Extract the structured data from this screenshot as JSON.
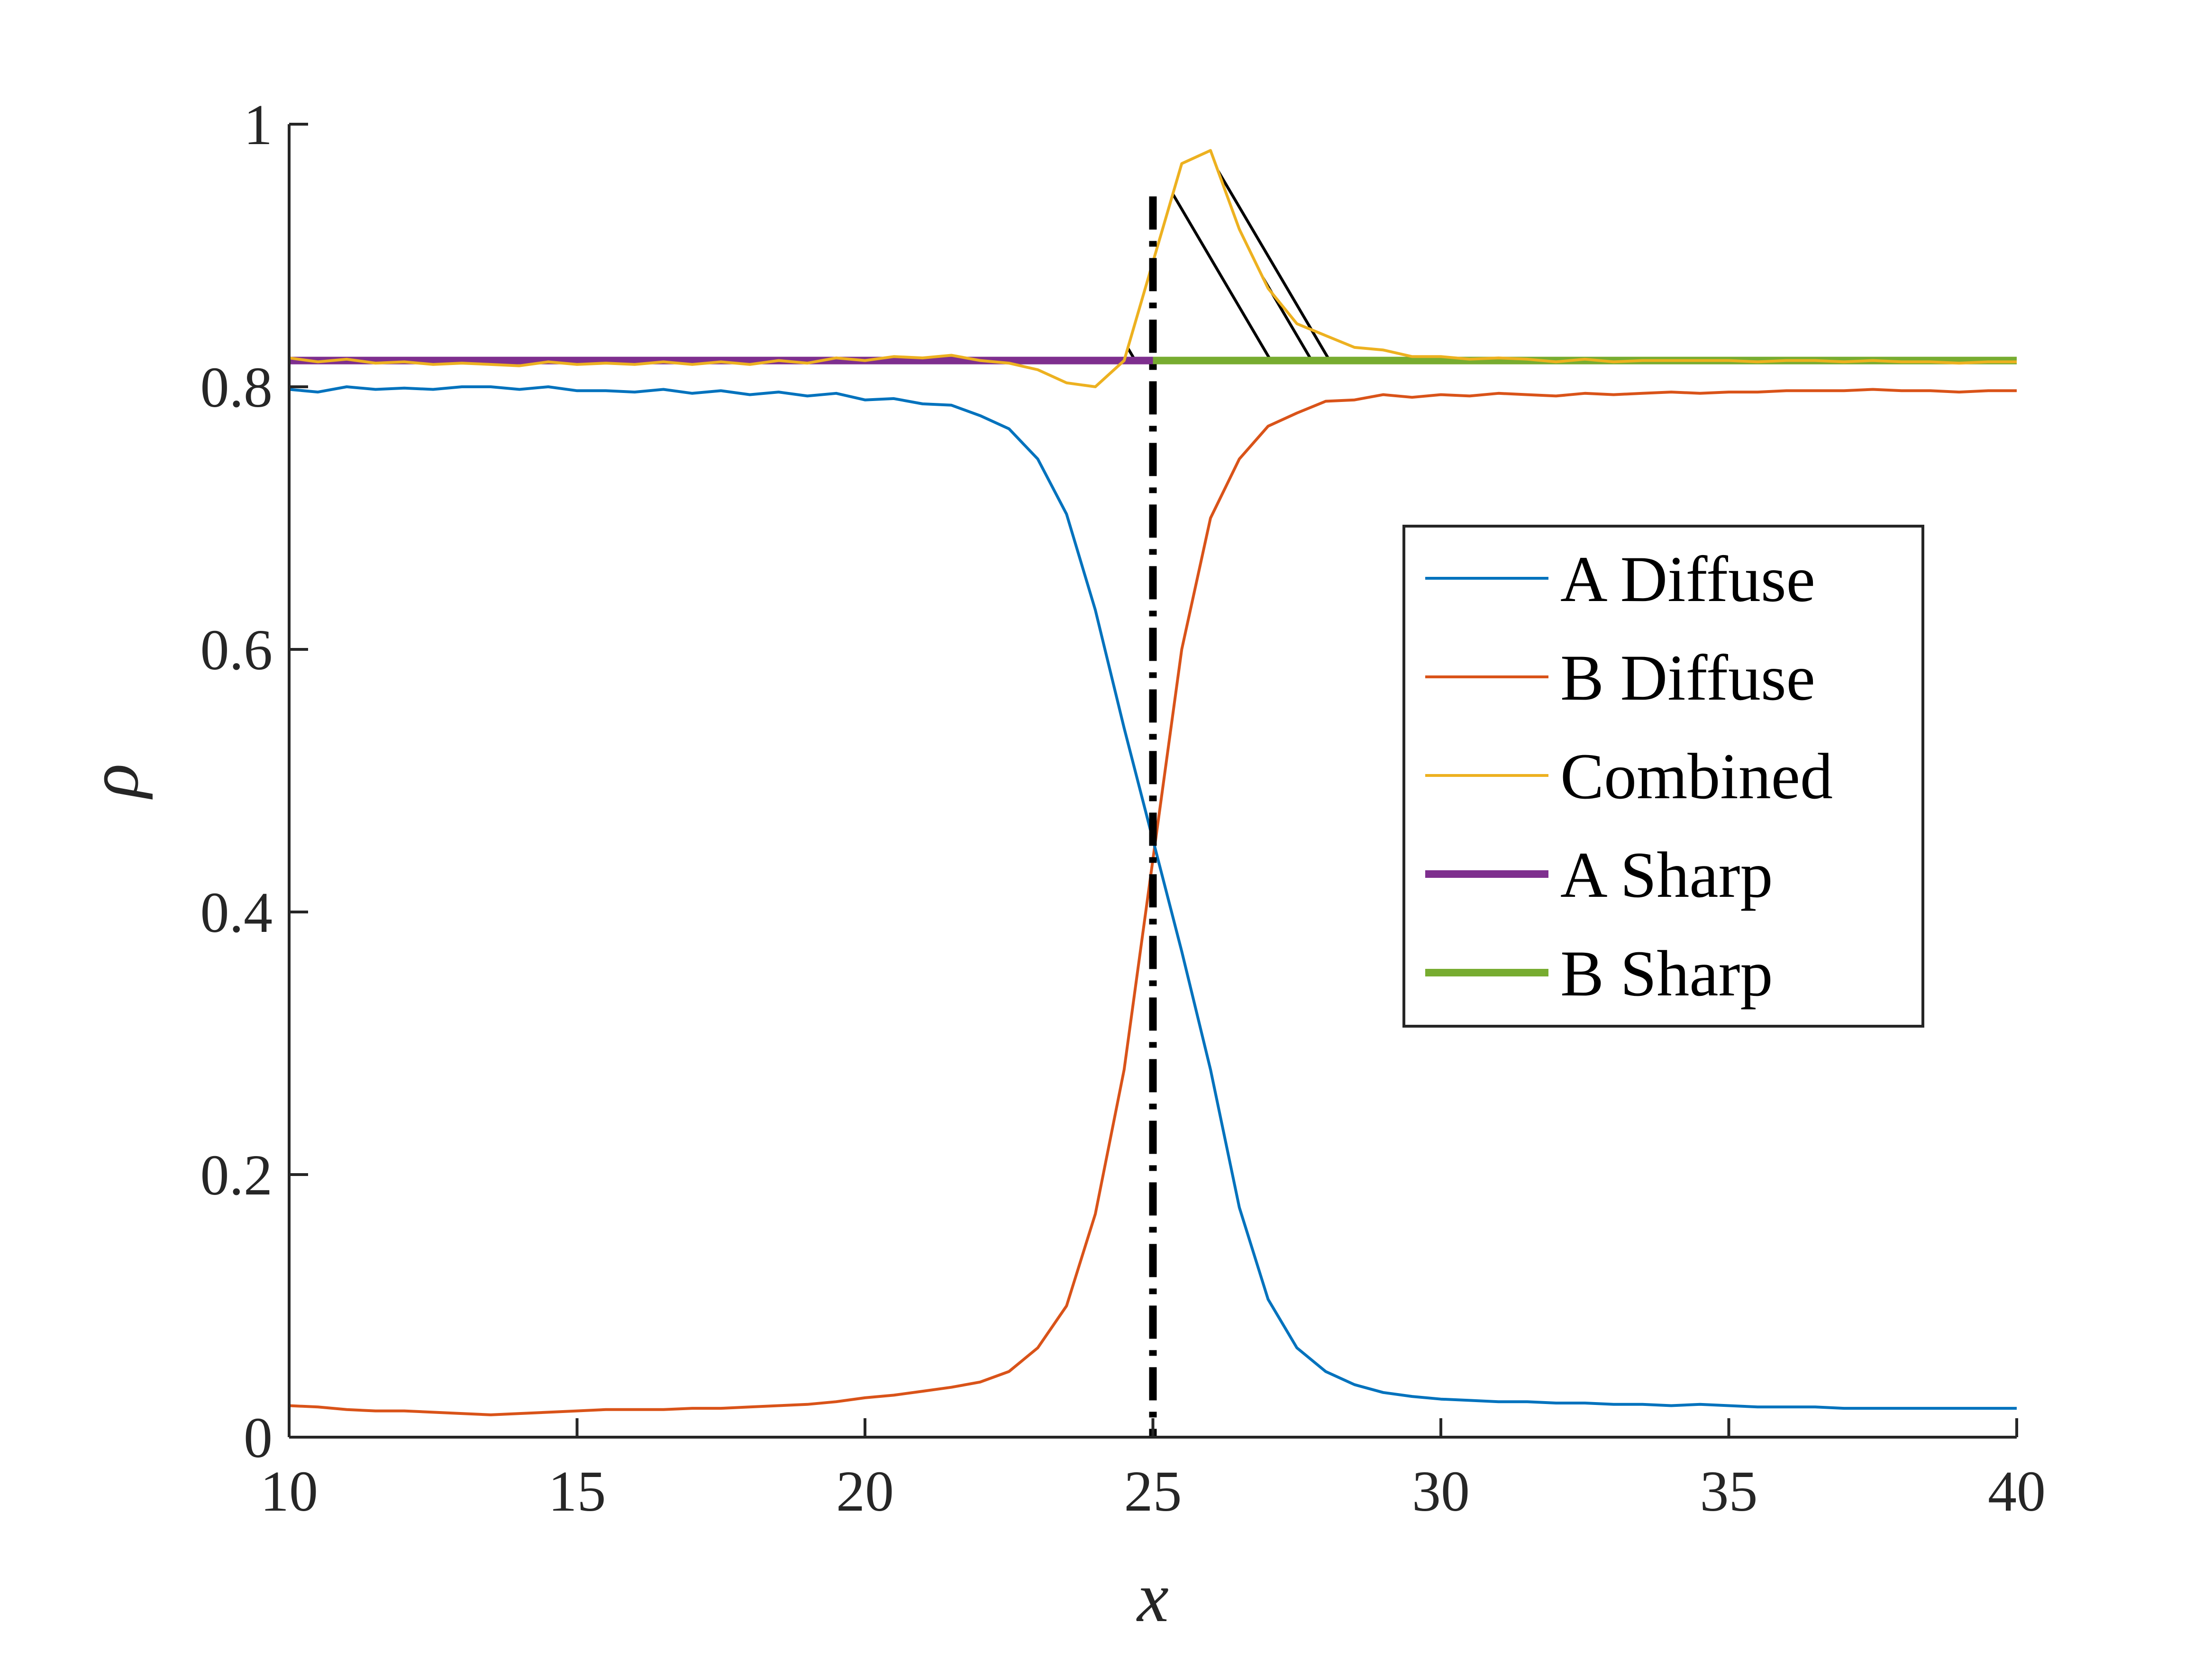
{
  "chart_data": {
    "type": "line",
    "xlabel": "x",
    "ylabel": "ρ",
    "xlim": [
      10,
      40
    ],
    "ylim": [
      0,
      1
    ],
    "xticks": [
      10,
      15,
      20,
      25,
      30,
      35,
      40
    ],
    "xtick_labels": [
      "10",
      "15",
      "20",
      "25",
      "30",
      "35",
      "40"
    ],
    "yticks": [
      0,
      0.2,
      0.4,
      0.6,
      0.8,
      1
    ],
    "ytick_labels": [
      "0",
      "0.2",
      "0.4",
      "0.6",
      "0.8",
      "1"
    ],
    "grid": false,
    "legend_position": "center-right",
    "interface_x": 25,
    "shaded_region": {
      "x": [
        23,
        27.4
      ],
      "baseline": 0.82,
      "hatched": true
    },
    "series": [
      {
        "name": "A Diffuse",
        "color": "#0072BD",
        "line_width": "thin",
        "x": [
          10,
          10.5,
          11,
          11.5,
          12,
          12.5,
          13,
          13.5,
          14,
          14.5,
          15,
          15.5,
          16,
          16.5,
          17,
          17.5,
          18,
          18.5,
          19,
          19.5,
          20,
          20.5,
          21,
          21.5,
          22,
          22.5,
          23,
          23.5,
          24,
          24.5,
          25,
          25.5,
          26,
          26.5,
          27,
          27.5,
          28,
          28.5,
          29,
          29.5,
          30,
          30.5,
          31,
          31.5,
          32,
          32.5,
          33,
          33.5,
          34,
          34.5,
          35,
          35.5,
          36,
          36.5,
          37,
          37.5,
          38,
          38.5,
          39,
          39.5,
          40
        ],
        "y": [
          0.798,
          0.796,
          0.8,
          0.798,
          0.799,
          0.798,
          0.8,
          0.8,
          0.798,
          0.8,
          0.797,
          0.797,
          0.796,
          0.798,
          0.795,
          0.797,
          0.794,
          0.796,
          0.793,
          0.795,
          0.79,
          0.791,
          0.787,
          0.786,
          0.778,
          0.768,
          0.745,
          0.703,
          0.63,
          0.54,
          0.455,
          0.37,
          0.28,
          0.175,
          0.105,
          0.068,
          0.05,
          0.04,
          0.034,
          0.031,
          0.029,
          0.028,
          0.027,
          0.027,
          0.026,
          0.026,
          0.025,
          0.025,
          0.024,
          0.025,
          0.024,
          0.023,
          0.023,
          0.023,
          0.022,
          0.022,
          0.022,
          0.022,
          0.022,
          0.022,
          0.022
        ]
      },
      {
        "name": "B Diffuse",
        "color": "#D95319",
        "line_width": "thin",
        "x": [
          10,
          10.5,
          11,
          11.5,
          12,
          12.5,
          13,
          13.5,
          14,
          14.5,
          15,
          15.5,
          16,
          16.5,
          17,
          17.5,
          18,
          18.5,
          19,
          19.5,
          20,
          20.5,
          21,
          21.5,
          22,
          22.5,
          23,
          23.5,
          24,
          24.5,
          25,
          25.5,
          26,
          26.5,
          27,
          27.5,
          28,
          28.5,
          29,
          29.5,
          30,
          30.5,
          31,
          31.5,
          32,
          32.5,
          33,
          33.5,
          34,
          34.5,
          35,
          35.5,
          36,
          36.5,
          37,
          37.5,
          38,
          38.5,
          39,
          39.5,
          40
        ],
        "y": [
          0.024,
          0.023,
          0.021,
          0.02,
          0.02,
          0.019,
          0.018,
          0.017,
          0.018,
          0.019,
          0.02,
          0.021,
          0.021,
          0.021,
          0.022,
          0.022,
          0.023,
          0.024,
          0.025,
          0.027,
          0.03,
          0.032,
          0.035,
          0.038,
          0.042,
          0.05,
          0.068,
          0.1,
          0.17,
          0.28,
          0.44,
          0.6,
          0.7,
          0.745,
          0.77,
          0.78,
          0.789,
          0.79,
          0.794,
          0.792,
          0.794,
          0.793,
          0.795,
          0.794,
          0.793,
          0.795,
          0.794,
          0.795,
          0.796,
          0.795,
          0.796,
          0.796,
          0.797,
          0.797,
          0.797,
          0.798,
          0.797,
          0.797,
          0.796,
          0.797,
          0.797
        ]
      },
      {
        "name": "Combined",
        "color": "#EDB120",
        "line_width": "thin",
        "x": [
          10,
          10.5,
          11,
          11.5,
          12,
          12.5,
          13,
          13.5,
          14,
          14.5,
          15,
          15.5,
          16,
          16.5,
          17,
          17.5,
          18,
          18.5,
          19,
          19.5,
          20,
          20.5,
          21,
          21.5,
          22,
          22.5,
          23,
          23.5,
          24,
          24.5,
          25,
          25.5,
          26,
          26.5,
          27,
          27.5,
          28,
          28.5,
          29,
          29.5,
          30,
          30.5,
          31,
          31.5,
          32,
          32.5,
          33,
          33.5,
          34,
          34.5,
          35,
          35.5,
          36,
          36.5,
          37,
          37.5,
          38,
          38.5,
          39,
          39.5,
          40
        ],
        "y": [
          0.822,
          0.819,
          0.821,
          0.818,
          0.819,
          0.817,
          0.818,
          0.817,
          0.816,
          0.819,
          0.817,
          0.818,
          0.817,
          0.819,
          0.817,
          0.819,
          0.817,
          0.82,
          0.818,
          0.822,
          0.82,
          0.823,
          0.822,
          0.824,
          0.82,
          0.818,
          0.813,
          0.803,
          0.8,
          0.82,
          0.895,
          0.97,
          0.98,
          0.92,
          0.875,
          0.848,
          0.839,
          0.83,
          0.828,
          0.823,
          0.823,
          0.821,
          0.822,
          0.821,
          0.819,
          0.821,
          0.819,
          0.82,
          0.82,
          0.82,
          0.82,
          0.819,
          0.82,
          0.82,
          0.819,
          0.82,
          0.819,
          0.819,
          0.818,
          0.819,
          0.819
        ]
      },
      {
        "name": "A Sharp",
        "color": "#7E2F8E",
        "line_width": "thick",
        "x": [
          10,
          25
        ],
        "y": [
          0.82,
          0.82
        ]
      },
      {
        "name": "B Sharp",
        "color": "#77AC30",
        "line_width": "thick",
        "x": [
          25,
          40
        ],
        "y": [
          0.82,
          0.82
        ]
      }
    ]
  }
}
